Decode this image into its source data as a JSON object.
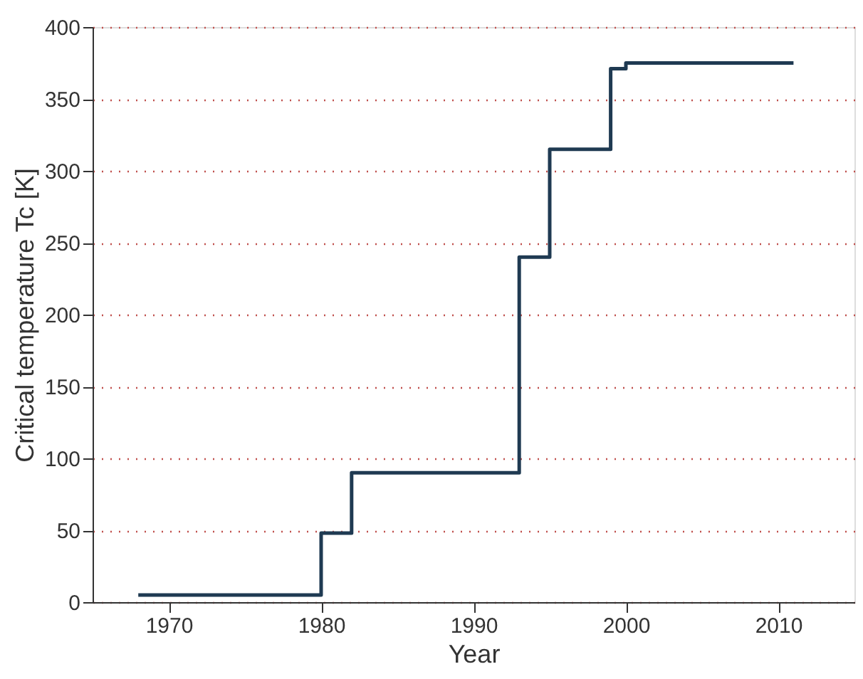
{
  "chart_data": {
    "type": "step",
    "xlabel": "Year",
    "ylabel": "Critical temperature Tc [K]",
    "x": [
      1968,
      1980,
      1982,
      1993,
      1995,
      1999,
      2000,
      2011
    ],
    "series": [
      {
        "color": "#1f3a52",
        "values": [
          5,
          48,
          90,
          240,
          315,
          371,
          375,
          375
        ]
      }
    ],
    "xlim": [
      1965,
      2015
    ],
    "xticks": [
      1970,
      1980,
      1990,
      2000,
      2010
    ],
    "ylim": [
      0,
      400
    ],
    "yticks": [
      0,
      50,
      100,
      150,
      200,
      250,
      300,
      350,
      400
    ],
    "grid": "y",
    "line_style": "solid",
    "marker": "none"
  }
}
